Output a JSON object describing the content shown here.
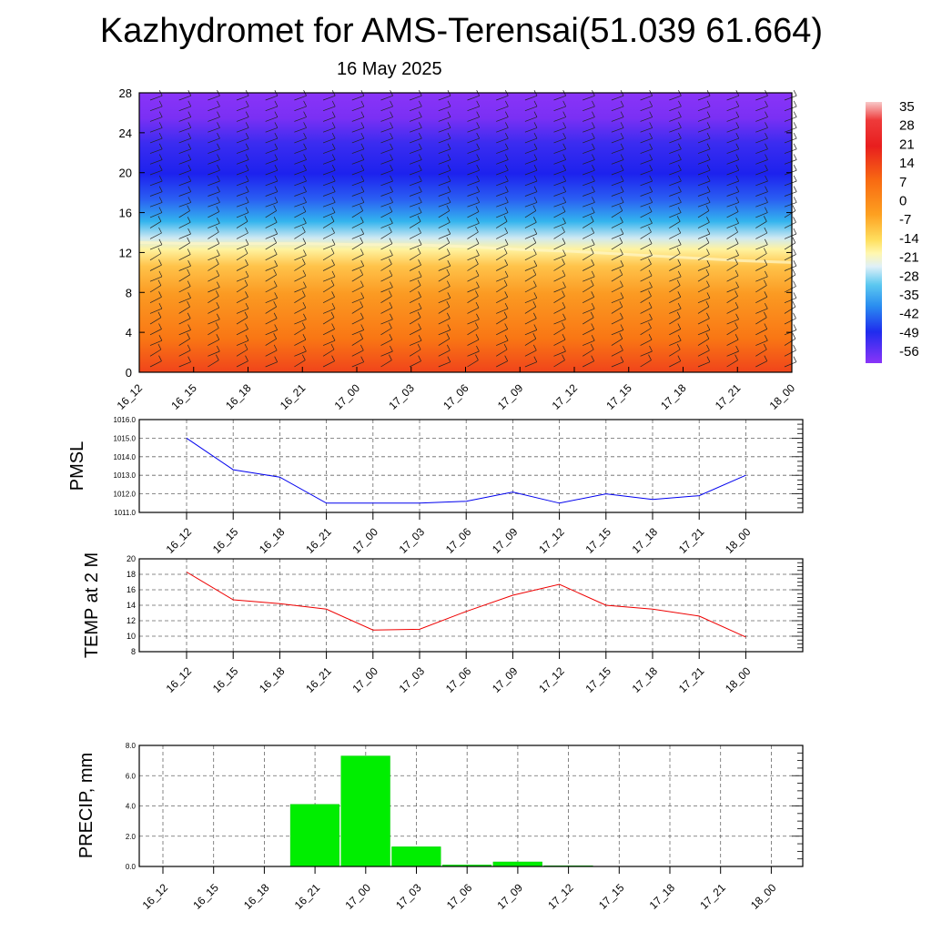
{
  "title": "Kazhydromet for AMS-Terensai(51.039 61.664)",
  "subtitle": "16 May 2025",
  "time_labels": [
    "16_12",
    "16_15",
    "16_18",
    "16_21",
    "17_00",
    "17_03",
    "17_06",
    "17_09",
    "17_12",
    "17_15",
    "17_18",
    "17_21",
    "18_00"
  ],
  "chart_data": [
    {
      "type": "heatmap",
      "title": "",
      "x": [
        "16_12",
        "16_15",
        "16_18",
        "16_21",
        "17_00",
        "17_03",
        "17_06",
        "17_09",
        "17_12",
        "17_15",
        "17_18",
        "17_21",
        "18_00"
      ],
      "yticks": [
        "0",
        "4",
        "8",
        "12",
        "16",
        "20",
        "24",
        "28"
      ],
      "ylim": [
        0,
        28
      ],
      "colorbar_labels": [
        "35",
        "28",
        "21",
        "14",
        "7",
        "0",
        "-7",
        "-14",
        "-21",
        "-28",
        "-35",
        "-42",
        "-49",
        "-56"
      ],
      "colorbar_range": [
        -63,
        42
      ],
      "zero_isotherm_level": [
        13.0,
        12.9,
        12.9,
        12.9,
        12.8,
        12.8,
        12.6,
        12.3,
        12.1,
        11.8,
        11.5,
        11.2,
        11.0
      ],
      "field_description_levels": [
        {
          "level": 0,
          "value": 20
        },
        {
          "level": 6,
          "value": 10
        },
        {
          "level": 10,
          "value": 2
        },
        {
          "level": 12.5,
          "value": -8
        },
        {
          "level": 14,
          "value": -20
        },
        {
          "level": 16,
          "value": -40
        },
        {
          "level": 18,
          "value": -55
        },
        {
          "level": 20,
          "value": -58
        },
        {
          "level": 24,
          "value": -50
        },
        {
          "level": 28,
          "value": -58
        }
      ],
      "wind_barbs": "shown",
      "colors": {
        "hot": "#e8361b",
        "warm": "#fb8c10",
        "yellow": "#fff066",
        "cyan": "#33bbee",
        "blue": "#1d2cf0",
        "violet": "#8833f8"
      }
    },
    {
      "type": "line",
      "ylabel": "PMSL",
      "x": [
        "16_12",
        "16_15",
        "16_18",
        "16_21",
        "17_00",
        "17_03",
        "17_06",
        "17_09",
        "17_12",
        "17_15",
        "17_18",
        "17_21",
        "18_00"
      ],
      "ylim": [
        1011.0,
        1016.0
      ],
      "yticks": [
        "1011.0",
        "1012.0",
        "1013.0",
        "1014.0",
        "1015.0",
        "1016.0"
      ],
      "series": [
        {
          "values": [
            1015.0,
            1013.3,
            1012.9,
            1011.5,
            1011.5,
            1011.5,
            1011.6,
            1012.1,
            1011.5,
            1012.0,
            1011.7,
            1011.9,
            1013.0
          ],
          "color": "#0000ee"
        }
      ],
      "grid": true
    },
    {
      "type": "line",
      "ylabel": "TEMP at 2 M",
      "x": [
        "16_12",
        "16_15",
        "16_18",
        "16_21",
        "17_00",
        "17_03",
        "17_06",
        "17_09",
        "17_12",
        "17_15",
        "17_18",
        "17_21",
        "18_00"
      ],
      "ylim": [
        8,
        20
      ],
      "yticks": [
        "8",
        "10",
        "12",
        "14",
        "16",
        "18",
        "20"
      ],
      "series": [
        {
          "values": [
            18.3,
            14.7,
            14.2,
            13.5,
            10.8,
            10.9,
            13.2,
            15.3,
            16.7,
            14.0,
            13.5,
            12.6,
            9.9
          ],
          "color": "#ee0000"
        }
      ],
      "grid": true
    },
    {
      "type": "bar",
      "ylabel": "PRECIP, mm",
      "categories": [
        "16_12",
        "16_15",
        "16_18",
        "16_21",
        "17_00",
        "17_03",
        "17_06",
        "17_09",
        "17_12",
        "17_15",
        "17_18",
        "17_21",
        "18_00"
      ],
      "values": [
        0,
        0,
        0,
        4.1,
        7.3,
        1.3,
        0.1,
        0.3,
        0.05,
        0,
        0,
        0,
        0
      ],
      "ylim": [
        0,
        8.0
      ],
      "yticks": [
        "0.0",
        "2.0",
        "4.0",
        "6.0",
        "8.0"
      ],
      "color": "#00ee00",
      "grid": true
    }
  ]
}
